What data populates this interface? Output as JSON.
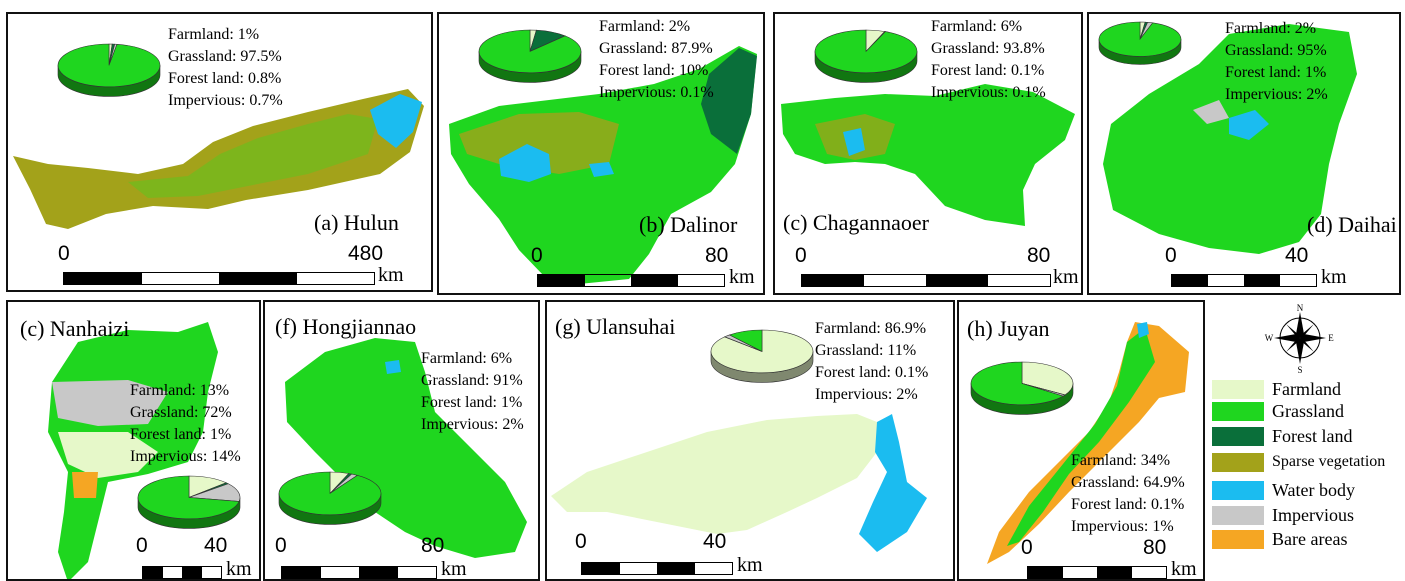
{
  "colors": {
    "farmland": "#e6f8c9",
    "grassland": "#1fd61f",
    "forest": "#0a6f3a",
    "sparse": "#a3a21a",
    "water": "#1bbcf0",
    "impervious": "#c8c8c8",
    "bare": "#f5a623"
  },
  "panels": [
    {
      "id": "a",
      "title": "(a) Hulun",
      "farmland": "Farmland: 1%",
      "grassland": "Grassland: 97.5%",
      "forest": "Forest land: 0.8%",
      "impervious": "Impervious: 0.7%",
      "scale_min": "0",
      "scale_max": "480",
      "unit": "km",
      "pie": {
        "farmland": 1,
        "grassland": 97.5,
        "forest": 0.8,
        "impervious": 0.7
      }
    },
    {
      "id": "b",
      "title": "(b) Dalinor",
      "farmland": "Farmland: 2%",
      "grassland": "Grassland: 87.9%",
      "forest": "Forest land: 10%",
      "impervious": "Impervious: 0.1%",
      "scale_min": "0",
      "scale_max": "80",
      "unit": "km",
      "pie": {
        "farmland": 2,
        "grassland": 87.9,
        "forest": 10,
        "impervious": 0.1
      }
    },
    {
      "id": "c",
      "title": "(c) Chagannaoer",
      "farmland": "Farmland: 6%",
      "grassland": "Grassland: 93.8%",
      "forest": "Forest land: 0.1%",
      "impervious": "Impervious: 0.1%",
      "scale_min": "0",
      "scale_max": "80",
      "unit": "km",
      "pie": {
        "farmland": 6,
        "grassland": 93.8,
        "forest": 0.1,
        "impervious": 0.1
      }
    },
    {
      "id": "d",
      "title": "(d) Daihai",
      "farmland": "Farmland: 2%",
      "grassland": "Grassland: 95%",
      "forest": "Forest land: 1%",
      "impervious": "Impervious: 2%",
      "scale_min": "0",
      "scale_max": "40",
      "unit": "km",
      "pie": {
        "farmland": 2,
        "grassland": 95,
        "forest": 1,
        "impervious": 2
      }
    },
    {
      "id": "e",
      "title": "(c) Nanhaizi",
      "farmland": "Farmland: 13%",
      "grassland": "Grassland: 72%",
      "forest": "Forest land: 1%",
      "impervious": "Impervious: 14%",
      "scale_min": "0",
      "scale_max": "40",
      "unit": "km",
      "pie": {
        "farmland": 13,
        "grassland": 72,
        "forest": 1,
        "impervious": 14
      }
    },
    {
      "id": "f",
      "title": "(f) Hongjiannao",
      "farmland": "Farmland: 6%",
      "grassland": "Grassland: 91%",
      "forest": "Forest land: 1%",
      "impervious": "Impervious: 2%",
      "scale_min": "0",
      "scale_max": "80",
      "unit": "km",
      "pie": {
        "farmland": 6,
        "grassland": 91,
        "forest": 1,
        "impervious": 2
      }
    },
    {
      "id": "g",
      "title": "(g) Ulansuhai",
      "farmland": "Farmland: 86.9%",
      "grassland": "Grassland: 11%",
      "forest": "Forest land: 0.1%",
      "impervious": "Impervious: 2%",
      "scale_min": "0",
      "scale_max": "40",
      "unit": "km",
      "pie": {
        "farmland": 86.9,
        "grassland": 11,
        "forest": 0.1,
        "impervious": 2
      }
    },
    {
      "id": "h",
      "title": "(h) Juyan",
      "farmland": "Farmland: 34%",
      "grassland": "Grassland: 64.9%",
      "forest": "Forest land: 0.1%",
      "impervious": "Impervious: 1%",
      "scale_min": "0",
      "scale_max": "80",
      "unit": "km",
      "pie": {
        "farmland": 34,
        "grassland": 64.9,
        "forest": 0.1,
        "impervious": 1
      }
    }
  ],
  "legend": {
    "items": [
      "Farmland",
      "Grassland",
      "Forest land",
      "Sparse vegetation",
      "Water body",
      "Impervious",
      "Bare areas"
    ],
    "keys": [
      "farmland",
      "grassland",
      "forest",
      "sparse",
      "water",
      "impervious",
      "bare"
    ]
  },
  "compass": {
    "n": "N",
    "e": "E",
    "s": "S",
    "w": "W"
  }
}
